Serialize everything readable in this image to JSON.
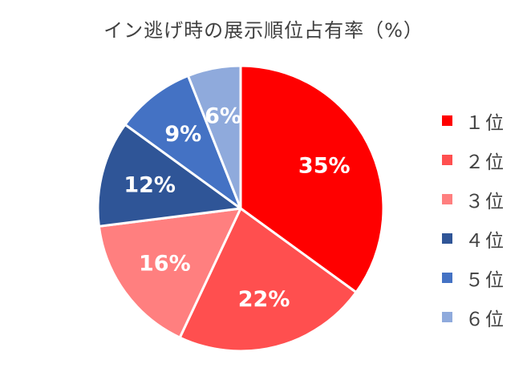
{
  "chart_data": {
    "type": "pie",
    "title": "イン逃げ時の展示順位占有率（%）",
    "categories": [
      "1位",
      "2位",
      "3位",
      "4位",
      "5位",
      "6位"
    ],
    "legend_labels": [
      "１位",
      "２位",
      "３位",
      "４位",
      "５位",
      "６位"
    ],
    "values": [
      35,
      22,
      16,
      12,
      9,
      6
    ],
    "data_labels": [
      "35%",
      "22%",
      "16%",
      "12%",
      "9%",
      "6%"
    ],
    "colors": [
      "#FF0000",
      "#FF4F4F",
      "#FF7F7F",
      "#2F5597",
      "#4472C4",
      "#8FAADC"
    ],
    "legend_position": "right"
  }
}
